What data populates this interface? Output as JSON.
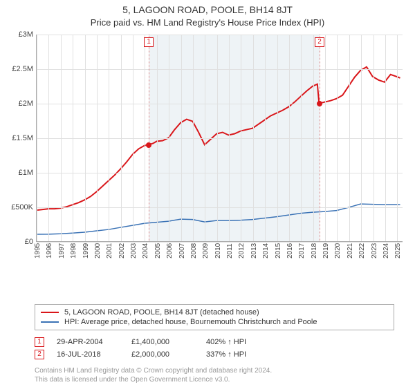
{
  "titles": {
    "main": "5, LAGOON ROAD, POOLE, BH14 8JT",
    "sub": "Price paid vs. HM Land Registry's House Price Index (HPI)"
  },
  "chart": {
    "type": "line",
    "x_years": [
      1995,
      1996,
      1997,
      1998,
      1999,
      2000,
      2001,
      2002,
      2003,
      2004,
      2005,
      2006,
      2007,
      2008,
      2009,
      2010,
      2011,
      2012,
      2013,
      2014,
      2015,
      2016,
      2017,
      2018,
      2019,
      2020,
      2021,
      2022,
      2023,
      2024,
      2025
    ],
    "x_range": [
      1995,
      2025.5
    ],
    "y": {
      "min": 0,
      "max": 3000000,
      "step": 500000,
      "labels": [
        "£0",
        "£500K",
        "£1M",
        "£1.5M",
        "£2M",
        "£2.5M",
        "£3M"
      ]
    },
    "grid_color": "#e0e0e0",
    "axis_color": "#aaaaaa",
    "band": {
      "color": "#eef3f6",
      "from_year": 2004.33,
      "to_year": 2018.54
    },
    "series": [
      {
        "id": "price_paid",
        "label": "5, LAGOON ROAD, POOLE, BH14 8JT (detached house)",
        "color": "#d9161a",
        "width": 2,
        "points": [
          [
            1995.0,
            450000
          ],
          [
            1995.5,
            460000
          ],
          [
            1996.0,
            470000
          ],
          [
            1996.5,
            470000
          ],
          [
            1997.0,
            480000
          ],
          [
            1997.5,
            500000
          ],
          [
            1998.0,
            530000
          ],
          [
            1998.5,
            560000
          ],
          [
            1999.0,
            600000
          ],
          [
            1999.5,
            650000
          ],
          [
            2000.0,
            720000
          ],
          [
            2000.5,
            800000
          ],
          [
            2001.0,
            880000
          ],
          [
            2001.5,
            960000
          ],
          [
            2002.0,
            1050000
          ],
          [
            2002.5,
            1150000
          ],
          [
            2003.0,
            1260000
          ],
          [
            2003.5,
            1340000
          ],
          [
            2004.0,
            1390000
          ],
          [
            2004.33,
            1400000
          ],
          [
            2004.7,
            1420000
          ],
          [
            2005.0,
            1450000
          ],
          [
            2005.5,
            1460000
          ],
          [
            2006.0,
            1500000
          ],
          [
            2006.5,
            1620000
          ],
          [
            2007.0,
            1720000
          ],
          [
            2007.5,
            1770000
          ],
          [
            2008.0,
            1740000
          ],
          [
            2008.5,
            1580000
          ],
          [
            2009.0,
            1400000
          ],
          [
            2009.5,
            1480000
          ],
          [
            2010.0,
            1560000
          ],
          [
            2010.5,
            1580000
          ],
          [
            2011.0,
            1540000
          ],
          [
            2011.5,
            1560000
          ],
          [
            2012.0,
            1600000
          ],
          [
            2012.5,
            1620000
          ],
          [
            2013.0,
            1640000
          ],
          [
            2013.5,
            1700000
          ],
          [
            2014.0,
            1760000
          ],
          [
            2014.5,
            1820000
          ],
          [
            2015.0,
            1860000
          ],
          [
            2015.5,
            1900000
          ],
          [
            2016.0,
            1950000
          ],
          [
            2016.5,
            2020000
          ],
          [
            2017.0,
            2100000
          ],
          [
            2017.5,
            2180000
          ],
          [
            2018.0,
            2250000
          ],
          [
            2018.4,
            2280000
          ],
          [
            2018.54,
            2000000
          ],
          [
            2019.0,
            2020000
          ],
          [
            2019.5,
            2040000
          ],
          [
            2020.0,
            2070000
          ],
          [
            2020.5,
            2120000
          ],
          [
            2021.0,
            2250000
          ],
          [
            2021.5,
            2380000
          ],
          [
            2022.0,
            2480000
          ],
          [
            2022.5,
            2530000
          ],
          [
            2023.0,
            2390000
          ],
          [
            2023.5,
            2340000
          ],
          [
            2024.0,
            2310000
          ],
          [
            2024.5,
            2420000
          ],
          [
            2025.0,
            2390000
          ],
          [
            2025.3,
            2370000
          ]
        ]
      },
      {
        "id": "hpi",
        "label": "HPI: Average price, detached house, Bournemouth Christchurch and Poole",
        "color": "#3a72b5",
        "width": 1.5,
        "points": [
          [
            1995.0,
            100000
          ],
          [
            1996.0,
            102000
          ],
          [
            1997.0,
            108000
          ],
          [
            1998.0,
            118000
          ],
          [
            1999.0,
            130000
          ],
          [
            2000.0,
            150000
          ],
          [
            2001.0,
            170000
          ],
          [
            2002.0,
            200000
          ],
          [
            2003.0,
            230000
          ],
          [
            2004.0,
            260000
          ],
          [
            2005.0,
            275000
          ],
          [
            2006.0,
            290000
          ],
          [
            2007.0,
            320000
          ],
          [
            2008.0,
            315000
          ],
          [
            2009.0,
            280000
          ],
          [
            2010.0,
            300000
          ],
          [
            2011.0,
            300000
          ],
          [
            2012.0,
            305000
          ],
          [
            2013.0,
            315000
          ],
          [
            2014.0,
            335000
          ],
          [
            2015.0,
            355000
          ],
          [
            2016.0,
            380000
          ],
          [
            2017.0,
            405000
          ],
          [
            2018.0,
            420000
          ],
          [
            2019.0,
            430000
          ],
          [
            2020.0,
            445000
          ],
          [
            2021.0,
            490000
          ],
          [
            2022.0,
            540000
          ],
          [
            2023.0,
            535000
          ],
          [
            2024.0,
            530000
          ],
          [
            2025.0,
            530000
          ],
          [
            2025.3,
            530000
          ]
        ]
      }
    ],
    "events": [
      {
        "n": "1",
        "year": 2004.33,
        "value": 1400000,
        "box_color": "#d9161a",
        "dot_color": "#d9161a"
      },
      {
        "n": "2",
        "year": 2018.54,
        "value": 2000000,
        "box_color": "#d9161a",
        "dot_color": "#d9161a"
      }
    ],
    "vline_color": "#d97f7f"
  },
  "legend": {
    "arrow": "↑",
    "hpi_suffix": "HPI",
    "rows": [
      {
        "n": "1",
        "date": "29-APR-2004",
        "price": "£1,400,000",
        "pct": "402%"
      },
      {
        "n": "2",
        "date": "16-JUL-2018",
        "price": "£2,000,000",
        "pct": "337%"
      }
    ]
  },
  "footer": {
    "l1": "Contains HM Land Registry data © Crown copyright and database right 2024.",
    "l2": "This data is licensed under the Open Government Licence v3.0."
  },
  "colors": {
    "footer_text": "#999999",
    "text": "#333333"
  }
}
